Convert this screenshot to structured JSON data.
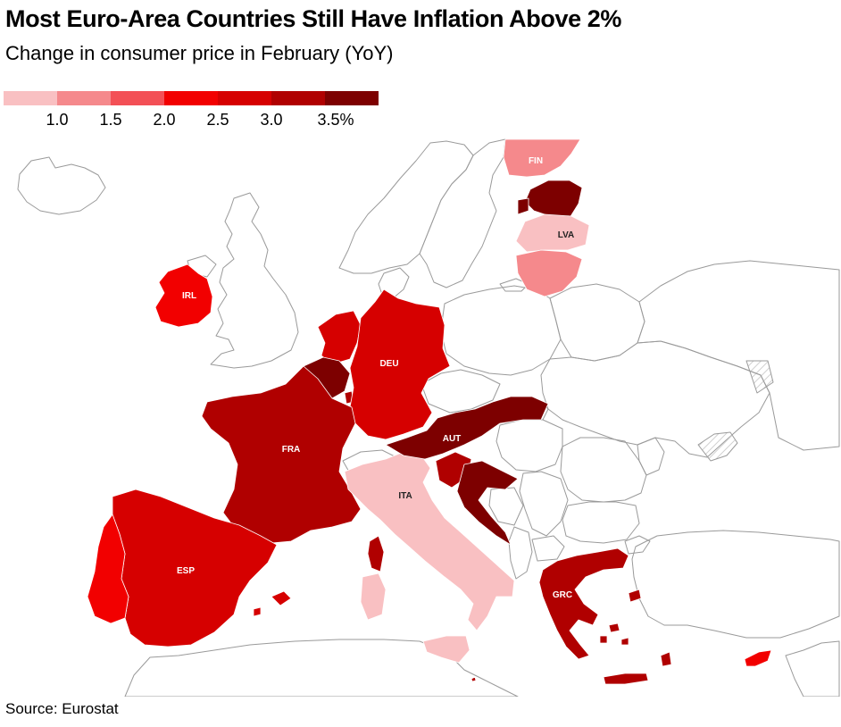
{
  "title": "Most Euro-Area Countries Still Have Inflation Above 2%",
  "subtitle": "Change in consumer price in February (YoY)",
  "legend": {
    "colors": [
      "#f9c0c2",
      "#f5898c",
      "#f35056",
      "#f20000",
      "#d60000",
      "#b00000",
      "#7d0000"
    ],
    "ticks": [
      "1.0",
      "1.5",
      "2.0",
      "2.5",
      "3.0",
      "3.5%"
    ]
  },
  "map": {
    "border_color": "#9a9a9a",
    "labels": {
      "fin": "FIN",
      "lva": "LVA",
      "irl": "IRL",
      "deu": "DEU",
      "fra": "FRA",
      "aut": "AUT",
      "ita": "ITA",
      "esp": "ESP",
      "grc": "GRC"
    }
  },
  "source": "Source: Eurostat"
}
